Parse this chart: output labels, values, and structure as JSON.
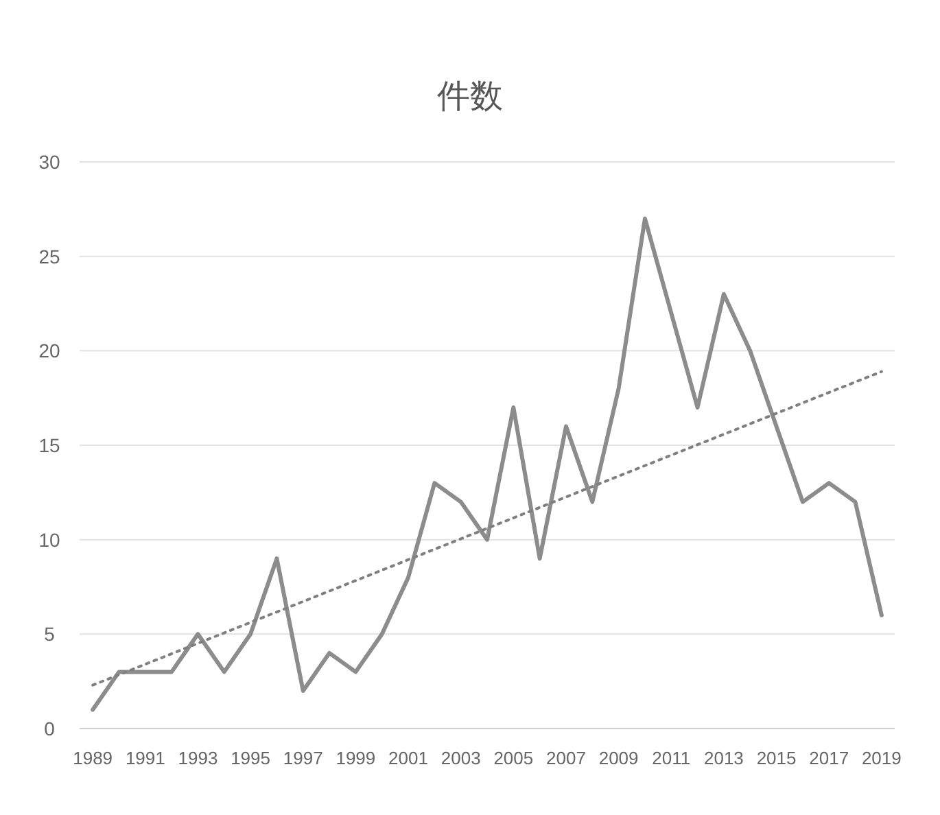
{
  "chart_data": {
    "type": "line",
    "title": "件数",
    "x": [
      1989,
      1990,
      1991,
      1992,
      1993,
      1994,
      1995,
      1996,
      1997,
      1998,
      1999,
      2000,
      2001,
      2002,
      2003,
      2004,
      2005,
      2006,
      2007,
      2008,
      2009,
      2010,
      2011,
      2012,
      2013,
      2014,
      2015,
      2016,
      2017,
      2018,
      2019
    ],
    "series": [
      {
        "color": "#8c8c8c",
        "values": [
          1,
          3,
          3,
          3,
          5,
          3,
          5,
          9,
          2,
          4,
          3,
          5,
          8,
          13,
          12,
          10,
          17,
          9,
          16,
          12,
          18,
          27,
          22,
          17,
          23,
          20,
          16,
          12,
          13,
          12,
          6
        ],
        "line_style": "solid"
      },
      {
        "type": "line",
        "color": "#7f7f7f",
        "x": [
          1989,
          2019
        ],
        "values": [
          2.3,
          18.9
        ],
        "line_style": "dotted"
      }
    ],
    "xlim": [
      1988.5,
      2019.5
    ],
    "xticks": [
      1989,
      1991,
      1993,
      1995,
      1997,
      1999,
      2001,
      2003,
      2005,
      2007,
      2009,
      2011,
      2013,
      2015,
      2017,
      2019
    ],
    "ylim": [
      0,
      30
    ],
    "yticks": [
      0,
      5,
      10,
      15,
      20,
      25,
      30
    ],
    "grid": "y",
    "marker": "none"
  }
}
